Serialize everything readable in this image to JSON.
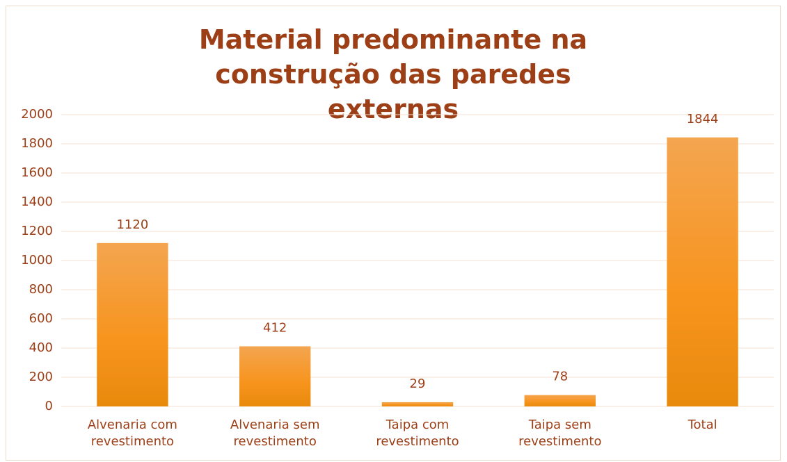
{
  "chart_data": {
    "type": "bar",
    "title": "Material predominante na construção das paredes externas",
    "categories": [
      "Alvenaria com revestimento",
      "Alvenaria sem revestimento",
      "Taipa com revestimento",
      "Taipa sem revestimento",
      "Total"
    ],
    "values": [
      1120,
      412,
      29,
      78,
      1844
    ],
    "color": "#f7941d",
    "ylim": [
      0,
      2000
    ],
    "yticks": [
      0,
      200,
      400,
      600,
      800,
      1000,
      1200,
      1400,
      1600,
      1800,
      2000
    ],
    "grid": true
  }
}
